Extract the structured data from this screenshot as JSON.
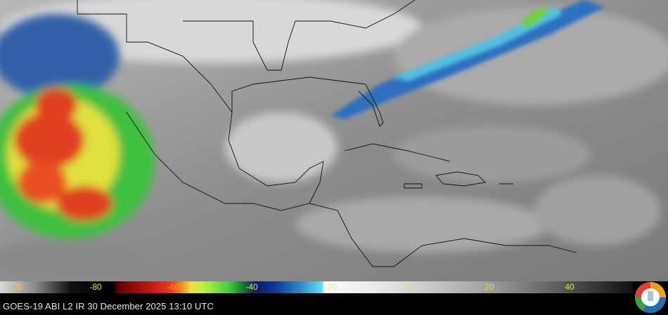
{
  "map": {
    "type": "satellite-infrared",
    "region": "Gulf of Mexico, Caribbean, Central America"
  },
  "colorbar": {
    "ticks": [
      "-100",
      "-80",
      "-60",
      "-40",
      "-20",
      "0",
      "20",
      "40"
    ],
    "tick_color": "#e8e030"
  },
  "caption": "GOES-19 ABI L2  IR 30 December 2025 13:10 UTC",
  "logo": {
    "icon": "agency-logo-icon"
  }
}
